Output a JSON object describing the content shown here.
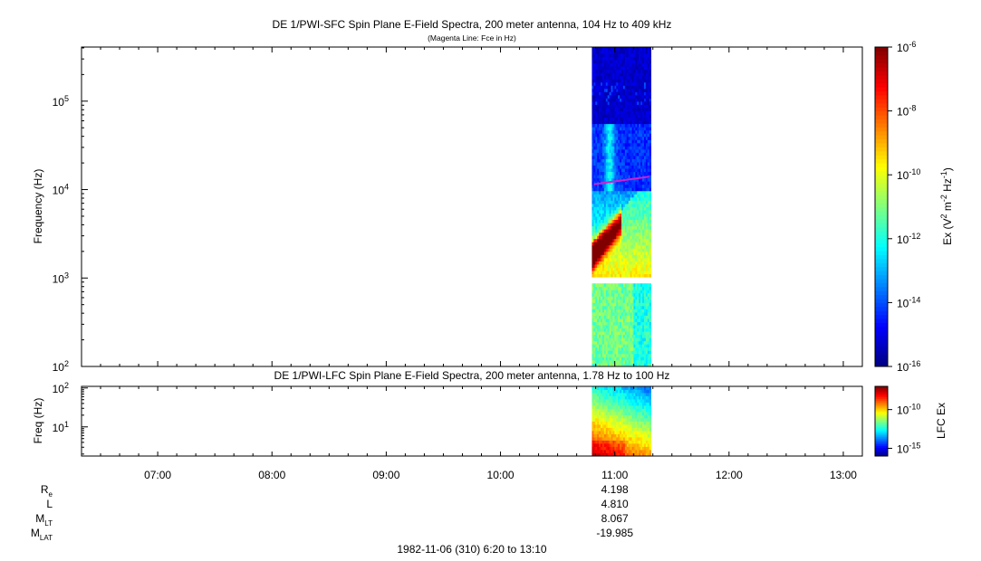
{
  "chart_data": [
    {
      "type": "heatmap",
      "title": "DE 1/PWI-SFC  Spin Plane E-Field Spectra, 200 meter antenna, 104 Hz to 409 kHz",
      "subtitle": "(Magenta Line: Fce in Hz)",
      "xlabel": "",
      "ylabel": "Frequency (Hz)",
      "y_scale": "log",
      "ylim": [
        100,
        409000
      ],
      "y_ticks": [
        {
          "value": 100,
          "base": "10",
          "exp": "2"
        },
        {
          "value": 1000,
          "base": "10",
          "exp": "3"
        },
        {
          "value": 10000,
          "base": "10",
          "exp": "4"
        },
        {
          "value": 100000,
          "base": "10",
          "exp": "5"
        }
      ],
      "colorbar": {
        "label_parts": [
          "Ex (V",
          "2",
          " m",
          "-2",
          " Hz",
          "-1",
          ")"
        ],
        "scale": "log",
        "range": [
          1e-16,
          1e-06
        ],
        "ticks": [
          {
            "value": 1e-16,
            "base": "10",
            "exp": "-16"
          },
          {
            "value": 1e-14,
            "base": "10",
            "exp": "-14"
          },
          {
            "value": 1e-12,
            "base": "10",
            "exp": "-12"
          },
          {
            "value": 1e-10,
            "base": "10",
            "exp": "-10"
          },
          {
            "value": 1e-08,
            "base": "10",
            "exp": "-8"
          },
          {
            "value": 1e-06,
            "base": "10",
            "exp": "-6"
          }
        ]
      },
      "data_time_range": [
        "10:48",
        "11:19"
      ],
      "fce_line": {
        "color": "#d020d0",
        "points": [
          {
            "time": "10:49",
            "freq_hz": 11500
          },
          {
            "time": "11:18",
            "freq_hz": 14000
          }
        ]
      },
      "gap_freq_range_hz": [
        890,
        1040
      ]
    },
    {
      "type": "heatmap",
      "title": "DE 1/PWI-LFC  Spin Plane E-Field Spectra, 200 meter antenna, 1.78 Hz to 100 Hz",
      "ylabel": "Freq (Hz)",
      "y_scale": "log",
      "ylim": [
        1.78,
        110
      ],
      "y_ticks": [
        {
          "value": 10,
          "base": "10",
          "exp": "1"
        },
        {
          "value": 100,
          "base": "10",
          "exp": "2"
        }
      ],
      "colorbar": {
        "label": "LFC Ex",
        "scale": "log",
        "range": [
          1e-16,
          1e-07
        ],
        "ticks": [
          {
            "value": 1e-15,
            "base": "10",
            "exp": "-15"
          },
          {
            "value": 1e-10,
            "base": "10",
            "exp": "-10"
          }
        ]
      },
      "data_time_range": [
        "10:48",
        "11:19"
      ]
    }
  ],
  "time_axis": {
    "range": [
      "06:20",
      "13:10"
    ],
    "tick_labels": [
      "07:00",
      "08:00",
      "09:00",
      "10:00",
      "11:00",
      "12:00",
      "13:00"
    ]
  },
  "ephemeris": {
    "rows": [
      {
        "name": "Re",
        "label": "R",
        "sub": "e",
        "value": "4.198"
      },
      {
        "name": "L",
        "label": "L",
        "sub": "",
        "value": "4.810"
      },
      {
        "name": "MLT",
        "label": "M",
        "sub": "LT",
        "value": "8.067"
      },
      {
        "name": "MLAT",
        "label": "M",
        "sub": "LAT",
        "value": "-19.985"
      }
    ],
    "value_time": "11:00"
  },
  "footer": "1982-11-06 (310) 6:20 to 13:10",
  "colors": {
    "magenta_line": "#d020d0",
    "axis": "#000000"
  }
}
